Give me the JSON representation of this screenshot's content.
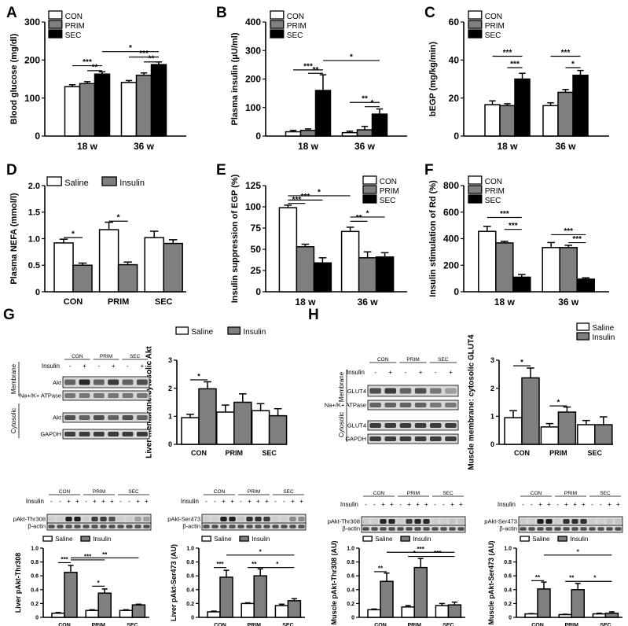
{
  "colors": {
    "con": "#ffffff",
    "prim": "#7f7f7f",
    "sec": "#000000",
    "blot_band": "#1a1a1a",
    "blot_bg": "#d8d8d8"
  },
  "panel_letters": {
    "A": "A",
    "B": "B",
    "C": "C",
    "D": "D",
    "E": "E",
    "F": "F",
    "G": "G",
    "H": "H"
  },
  "chart_data": [
    {
      "id": "A",
      "type": "bar",
      "ylabel": "Blood glucose (mg/dl)",
      "ylim": [
        0,
        300
      ],
      "yticks": [
        0,
        100,
        200,
        300
      ],
      "categories": [
        "18 w",
        "36 w"
      ],
      "series": [
        {
          "name": "CON",
          "color_key": "con",
          "values": [
            130,
            141
          ],
          "errors": [
            5,
            5
          ]
        },
        {
          "name": "PRIM",
          "color_key": "prim",
          "values": [
            138,
            160
          ],
          "errors": [
            5,
            6
          ]
        },
        {
          "name": "SEC",
          "color_key": "sec",
          "values": [
            163,
            188
          ],
          "errors": [
            6,
            7
          ]
        }
      ],
      "legend": [
        "CON",
        "PRIM",
        "SEC"
      ],
      "annotations": [
        "***",
        "**",
        "*",
        "***",
        "**"
      ]
    },
    {
      "id": "B",
      "type": "bar",
      "ylabel": "Plasma insulin (μU/ml)",
      "ylim": [
        0,
        400
      ],
      "yticks": [
        0,
        100,
        200,
        300,
        400
      ],
      "categories": [
        "18 w",
        "36 w"
      ],
      "series": [
        {
          "name": "CON",
          "color_key": "con",
          "values": [
            15,
            12
          ],
          "errors": [
            5,
            5
          ]
        },
        {
          "name": "PRIM",
          "color_key": "prim",
          "values": [
            20,
            22
          ],
          "errors": [
            5,
            12
          ]
        },
        {
          "name": "SEC",
          "color_key": "sec",
          "values": [
            160,
            77
          ],
          "errors": [
            55,
            18
          ]
        }
      ],
      "legend": [
        "CON",
        "PRIM",
        "SEC"
      ],
      "annotations": [
        "***",
        "**",
        "*",
        "**",
        "*"
      ]
    },
    {
      "id": "C",
      "type": "bar",
      "ylabel": "bEGP (mg/kg/min)",
      "ylim": [
        0,
        60
      ],
      "yticks": [
        0,
        20,
        40,
        60
      ],
      "categories": [
        "18 w",
        "36 w"
      ],
      "series": [
        {
          "name": "CON",
          "color_key": "con",
          "values": [
            16.5,
            16
          ],
          "errors": [
            2,
            1.5
          ]
        },
        {
          "name": "PRIM",
          "color_key": "prim",
          "values": [
            16,
            23
          ],
          "errors": [
            1,
            1.5
          ]
        },
        {
          "name": "SEC",
          "color_key": "sec",
          "values": [
            30,
            32
          ],
          "errors": [
            3,
            2.5
          ]
        }
      ],
      "legend": [
        "CON",
        "PRIM",
        "SEC"
      ],
      "annotations": [
        "***",
        "***",
        "***",
        "*"
      ]
    },
    {
      "id": "D",
      "type": "bar",
      "ylabel": "Plasma NEFA (mmol/l)",
      "ylim": [
        0,
        2.0
      ],
      "yticks": [
        "0",
        "0.5",
        "1.0",
        "1.5",
        "2.0"
      ],
      "categories": [
        "CON",
        "PRIM",
        "SEC"
      ],
      "series": [
        {
          "name": "Saline",
          "color_key": "con",
          "values": [
            0.92,
            1.17,
            1.02
          ],
          "errors": [
            0.07,
            0.14,
            0.12
          ]
        },
        {
          "name": "Insulin",
          "color_key": "prim",
          "values": [
            0.5,
            0.51,
            0.91
          ],
          "errors": [
            0.04,
            0.05,
            0.07
          ]
        }
      ],
      "legend": [
        "Saline",
        "Insulin"
      ],
      "annotations": [
        "*",
        "*"
      ]
    },
    {
      "id": "E",
      "type": "bar",
      "ylabel": "Insulin suppression of EGP (%)",
      "ylim": [
        0,
        125
      ],
      "yticks": [
        0,
        25,
        50,
        75,
        100,
        125
      ],
      "categories": [
        "18 w",
        "36 w"
      ],
      "series": [
        {
          "name": "CON",
          "color_key": "con",
          "values": [
            99,
            71
          ],
          "errors": [
            3,
            5
          ]
        },
        {
          "name": "PRIM",
          "color_key": "prim",
          "values": [
            53,
            40
          ],
          "errors": [
            3,
            7
          ]
        },
        {
          "name": "SEC",
          "color_key": "sec",
          "values": [
            34,
            41
          ],
          "errors": [
            6,
            5
          ]
        }
      ],
      "legend": [
        "CON",
        "PRIM",
        "SEC"
      ],
      "annotations": [
        "*",
        "***",
        "***",
        "**",
        "*"
      ]
    },
    {
      "id": "F",
      "type": "bar",
      "ylabel": "Insulin stimulation of Rd (%)",
      "ylim": [
        0,
        800
      ],
      "yticks": [
        0,
        200,
        400,
        600,
        800
      ],
      "categories": [
        "18 w",
        "36 w"
      ],
      "series": [
        {
          "name": "CON",
          "color_key": "con",
          "values": [
            455,
            333
          ],
          "errors": [
            38,
            38
          ]
        },
        {
          "name": "PRIM",
          "color_key": "prim",
          "values": [
            368,
            333
          ],
          "errors": [
            12,
            17
          ]
        },
        {
          "name": "SEC",
          "color_key": "sec",
          "values": [
            110,
            95
          ],
          "errors": [
            20,
            10
          ]
        }
      ],
      "legend": [
        "CON",
        "PRIM",
        "SEC"
      ],
      "annotations": [
        "***",
        "***",
        "***",
        "***"
      ]
    },
    {
      "id": "G1",
      "type": "bar",
      "ylabel": "Liver membrane:cytosolic Akt",
      "ylim": [
        0,
        3
      ],
      "yticks": [
        0,
        1,
        2,
        3
      ],
      "categories": [
        "CON",
        "PRIM",
        "SEC"
      ],
      "series": [
        {
          "name": "Saline",
          "color_key": "con",
          "values": [
            0.95,
            1.15,
            1.2
          ],
          "errors": [
            0.12,
            0.25,
            0.25
          ]
        },
        {
          "name": "Insulin",
          "color_key": "prim",
          "values": [
            1.98,
            1.5,
            1.02
          ],
          "errors": [
            0.25,
            0.3,
            0.25
          ]
        }
      ],
      "legend": [
        "Saline",
        "Insulin"
      ],
      "annotations": [
        "*"
      ]
    },
    {
      "id": "H1",
      "type": "bar",
      "ylabel": "Muscle membrane: cytosolic GLUT4",
      "ylim": [
        0,
        3
      ],
      "yticks": [
        0,
        1,
        2,
        3
      ],
      "categories": [
        "CON",
        "PRIM",
        "SEC"
      ],
      "series": [
        {
          "name": "Saline",
          "color_key": "con",
          "values": [
            0.95,
            0.62,
            0.7
          ],
          "errors": [
            0.25,
            0.12,
            0.15
          ]
        },
        {
          "name": "Insulin",
          "color_key": "prim",
          "values": [
            2.37,
            1.15,
            0.7
          ],
          "errors": [
            0.35,
            0.18,
            0.28
          ]
        }
      ],
      "legend": [
        "Saline",
        "Insulin"
      ],
      "annotations": [
        "*",
        "*"
      ]
    },
    {
      "id": "G2",
      "type": "bar",
      "ylabel": "Liver pAkt-Thr308",
      "ylim": [
        0,
        1.0
      ],
      "yticks": [
        "0",
        "0.2",
        "0.4",
        "0.6",
        "0.8",
        "1.0"
      ],
      "categories": [
        "CON",
        "PRIM",
        "SEC"
      ],
      "series": [
        {
          "name": "Saline",
          "color_key": "con",
          "values": [
            0.06,
            0.1,
            0.1
          ],
          "errors": [
            0.01,
            0.01,
            0.01
          ]
        },
        {
          "name": "Insulin",
          "color_key": "prim",
          "values": [
            0.65,
            0.35,
            0.18
          ],
          "errors": [
            0.1,
            0.06,
            0.01
          ]
        }
      ],
      "legend": [
        "Saline",
        "Insulin"
      ],
      "annotations": [
        "***",
        "***",
        "**",
        "*"
      ]
    },
    {
      "id": "G3",
      "type": "bar",
      "ylabel": "Liver pAkt-Ser473 (AU)",
      "ylim": [
        0,
        1.0
      ],
      "yticks": [
        "0",
        "0.2",
        "0.4",
        "0.6",
        "0.8",
        "1.0"
      ],
      "categories": [
        "CON",
        "PRIM",
        "SEC"
      ],
      "series": [
        {
          "name": "Saline",
          "color_key": "con",
          "values": [
            0.08,
            0.2,
            0.17
          ],
          "errors": [
            0.01,
            0.01,
            0.02
          ]
        },
        {
          "name": "Insulin",
          "color_key": "prim",
          "values": [
            0.58,
            0.6,
            0.24
          ],
          "errors": [
            0.1,
            0.1,
            0.03
          ]
        }
      ],
      "legend": [
        "Saline",
        "Insulin"
      ],
      "annotations": [
        "***",
        "*",
        "**",
        "*"
      ]
    },
    {
      "id": "H2",
      "type": "bar",
      "ylabel": "Muscle pAkt-Thr308 (AU)",
      "ylim": [
        0,
        1.0
      ],
      "yticks": [
        "0",
        "0.2",
        "0.4",
        "0.6",
        "0.8",
        "1.0"
      ],
      "categories": [
        "CON",
        "PRIM",
        "SEC"
      ],
      "series": [
        {
          "name": "Saline",
          "color_key": "con",
          "values": [
            0.11,
            0.15,
            0.17
          ],
          "errors": [
            0.01,
            0.02,
            0.03
          ]
        },
        {
          "name": "Insulin",
          "color_key": "prim",
          "values": [
            0.52,
            0.72,
            0.18
          ],
          "errors": [
            0.12,
            0.13,
            0.04
          ]
        }
      ],
      "legend": [
        "Saline",
        "Insulin"
      ],
      "annotations": [
        "**",
        "*",
        "***",
        "***"
      ]
    },
    {
      "id": "H3",
      "type": "bar",
      "ylabel": "Muscle pAkt-Ser473 (AU)",
      "ylim": [
        0,
        1.0
      ],
      "yticks": [
        "0",
        "0.2",
        "0.4",
        "0.6",
        "0.8",
        "1.0"
      ],
      "categories": [
        "CON",
        "PRIM",
        "SEC"
      ],
      "series": [
        {
          "name": "Saline",
          "color_key": "con",
          "values": [
            0.05,
            0.04,
            0.05
          ],
          "errors": [
            0.005,
            0.005,
            0.01
          ]
        },
        {
          "name": "Insulin",
          "color_key": "prim",
          "values": [
            0.41,
            0.4,
            0.06
          ],
          "errors": [
            0.1,
            0.09,
            0.02
          ]
        }
      ],
      "legend": [
        "Saline",
        "Insulin"
      ],
      "annotations": [
        "**",
        "*",
        "**",
        "*"
      ]
    }
  ],
  "blots": [
    {
      "id": "G_blot",
      "groups": [
        "CON",
        "PRIM",
        "SEC"
      ],
      "insulin_label": "Insulin",
      "insulin_signs": [
        "-",
        "+",
        "-",
        "+",
        "-",
        "+"
      ],
      "rows": [
        "Akt",
        "Na+/K+ ATPase",
        "Akt",
        "GAPDH"
      ],
      "compartments": [
        "Membrane",
        "Cytosolic"
      ]
    },
    {
      "id": "H_blot",
      "groups": [
        "CON",
        "PRIM",
        "SEC"
      ],
      "insulin_label": "Insulin",
      "insulin_signs": [
        "-",
        "+",
        "-",
        "+",
        "-",
        "+"
      ],
      "rows": [
        "GLUT4",
        "Na+/K+ ATPase",
        "GLUT4",
        "GAPDH"
      ],
      "compartments": [
        "Membrane",
        "Cytosolic"
      ]
    },
    {
      "id": "G2_blot",
      "groups": [
        "CON",
        "PRIM",
        "SEC"
      ],
      "insulin_label": "Insulin",
      "insulin_signs": [
        "-",
        "-",
        "+",
        "+",
        "-",
        "+",
        "+",
        "+",
        "-",
        "-",
        "+",
        "+"
      ],
      "rows": [
        "pAkt-Thr308",
        "β-actin"
      ]
    },
    {
      "id": "G3_blot",
      "groups": [
        "CON",
        "PRIM",
        "SEC"
      ],
      "insulin_label": "Insulin",
      "insulin_signs": [
        "-",
        "-",
        "+",
        "+",
        "-",
        "+",
        "+",
        "+",
        "-",
        "-",
        "+",
        "+"
      ],
      "rows": [
        "pAkt-Ser473",
        "β-actin"
      ]
    },
    {
      "id": "H2_blot",
      "groups": [
        "CON",
        "PRIM",
        "SEC"
      ],
      "insulin_label": "Insulin",
      "insulin_signs": [
        "-",
        "-",
        "+",
        "+",
        "-",
        "+",
        "+",
        "+",
        "-",
        "-",
        "+",
        "+"
      ],
      "rows": [
        "pAkt-Thr308",
        "β-actin"
      ]
    },
    {
      "id": "H3_blot",
      "groups": [
        "CON",
        "PRIM",
        "SEC"
      ],
      "insulin_label": "Insulin",
      "insulin_signs": [
        "-",
        "-",
        "+",
        "+",
        "-",
        "+",
        "+",
        "+",
        "-",
        "-",
        "+",
        "+"
      ],
      "rows": [
        "pAkt-Ser473",
        "β-actin"
      ]
    }
  ]
}
